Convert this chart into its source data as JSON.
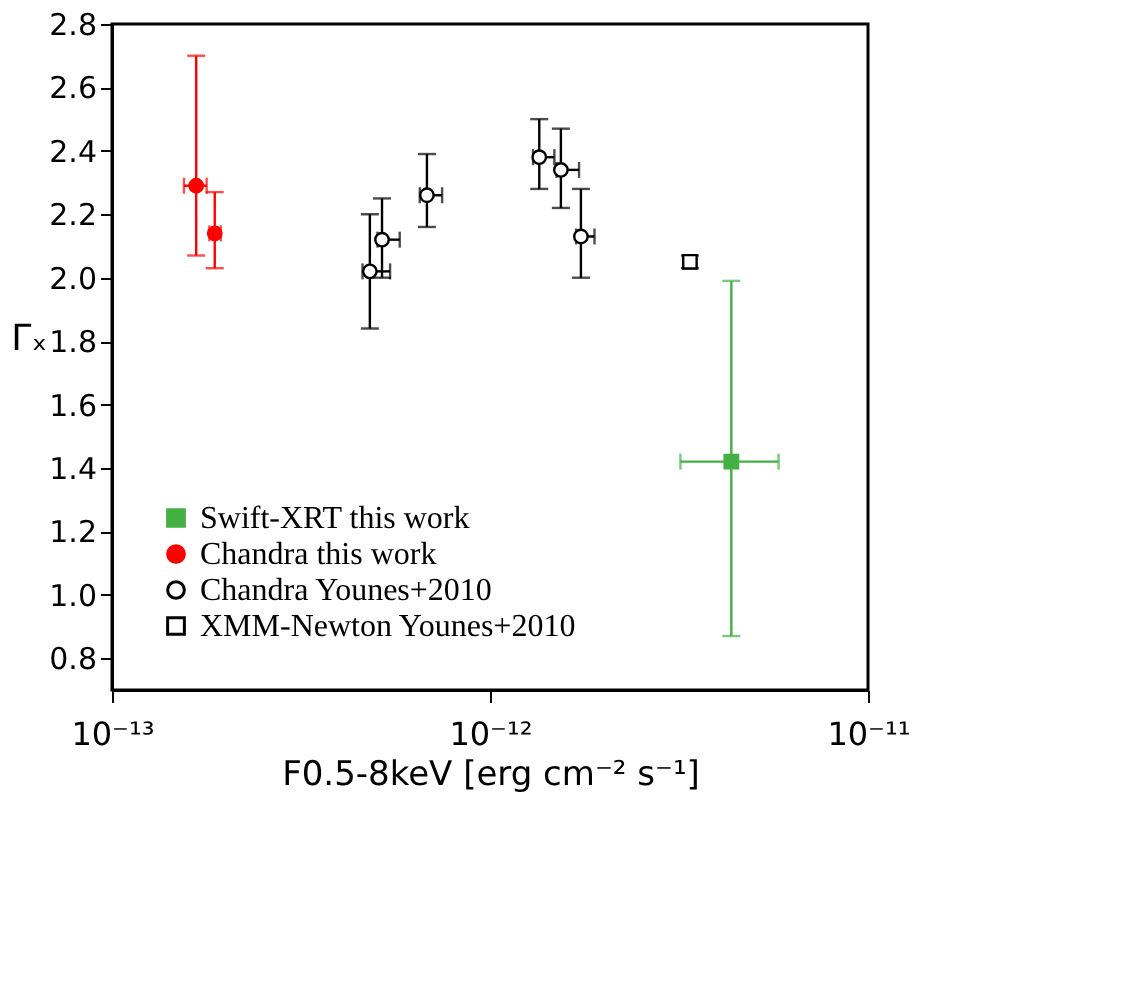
{
  "chart_data": {
    "type": "scatter",
    "xlabel": "F0.5-8keV [erg cm⁻² s⁻¹]",
    "ylabel": "Γₓ",
    "log": "x",
    "xlim": [
      1e-13,
      1e-11
    ],
    "xticks": [
      {
        "value": 1e-13,
        "label": "10⁻¹³"
      },
      {
        "value": 1e-12,
        "label": "10⁻¹²"
      },
      {
        "value": 1e-11,
        "label": "10⁻¹¹"
      }
    ],
    "ylim": [
      0.7,
      2.8
    ],
    "yticks": [
      {
        "value": 0.8,
        "label": "0.8"
      },
      {
        "value": 1.0,
        "label": "1.0"
      },
      {
        "value": 1.2,
        "label": "1.2"
      },
      {
        "value": 1.4,
        "label": "1.4"
      },
      {
        "value": 1.6,
        "label": "1.6"
      },
      {
        "value": 1.8,
        "label": "1.8"
      },
      {
        "value": 2.0,
        "label": "2.0"
      },
      {
        "value": 2.2,
        "label": "2.2"
      },
      {
        "value": 2.4,
        "label": "2.4"
      },
      {
        "value": 2.6,
        "label": "2.6"
      },
      {
        "value": 2.8,
        "label": "2.8"
      }
    ],
    "grid": false,
    "legend": "bottom left",
    "series": [
      {
        "name": "Swift-XRT this work",
        "color": "#44b044",
        "marker": "square",
        "x": [
          4.35e-12
        ],
        "values": [
          1.42
        ],
        "errors": [
          [
            0.87,
            1.99
          ]
        ],
        "xerrors": [
          [
            3.19e-12,
            5.8e-12
          ]
        ]
      },
      {
        "name": "Chandra this work",
        "color": "#ff0000",
        "marker": "circle",
        "x": [
          1.67e-13,
          1.87e-13
        ],
        "values": [
          2.29,
          2.14
        ],
        "errors": [
          [
            2.07,
            2.7
          ],
          [
            2.03,
            2.27
          ]
        ],
        "xerrors": [
          [
            1.55e-13,
            1.78e-13
          ],
          [
            1.81e-13,
            1.94e-13
          ]
        ]
      },
      {
        "name": "Chandra Younes+2010",
        "color": "#000000",
        "marker": "circle",
        "x": [
          4.81e-13,
          5.18e-13,
          6.81e-13,
          1.35e-12,
          1.54e-12,
          1.74e-12
        ],
        "values": [
          2.02,
          2.12,
          2.26,
          2.38,
          2.34,
          2.13
        ],
        "errors": [
          [
            1.84,
            2.2
          ],
          [
            2.0,
            2.25
          ],
          [
            2.16,
            2.39
          ],
          [
            2.28,
            2.5
          ],
          [
            2.22,
            2.47
          ],
          [
            2.0,
            2.28
          ]
        ],
        "xerrors": [
          [
            4.6e-13,
            5.44e-13
          ],
          [
            5.04e-13,
            5.77e-13
          ],
          [
            6.52e-13,
            7.47e-13
          ],
          [
            1.3e-12,
            1.48e-12
          ],
          [
            1.5e-12,
            1.72e-12
          ],
          [
            1.69e-12,
            1.89e-12
          ]
        ]
      },
      {
        "name": "XMM-Newton Younes+2010",
        "color": "#000000",
        "marker": "square",
        "x": [
          3.38e-12
        ],
        "values": [
          2.05
        ],
        "errors": [
          [
            2.03,
            2.07
          ]
        ],
        "xerrors": [
          null
        ]
      }
    ]
  }
}
